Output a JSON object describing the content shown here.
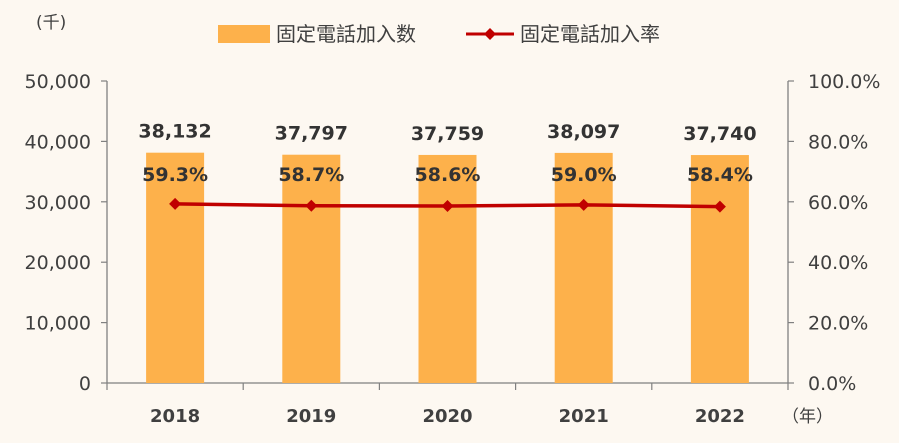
{
  "chart_data": {
    "type": "bar+line",
    "categories": [
      "2018",
      "2019",
      "2020",
      "2021",
      "2022"
    ],
    "series": [
      {
        "name": "固定電話加入数",
        "type": "bar",
        "axis": "left",
        "color": "#fdb14b",
        "values": [
          38132,
          37797,
          37759,
          38097,
          37740
        ],
        "value_labels": [
          "38,132",
          "37,797",
          "37,759",
          "38,097",
          "37,740"
        ]
      },
      {
        "name": "固定電話加入率",
        "type": "line",
        "axis": "right",
        "color": "#c00000",
        "values": [
          59.3,
          58.7,
          58.6,
          59.0,
          58.4
        ],
        "value_labels": [
          "59.3%",
          "58.7%",
          "58.6%",
          "59.0%",
          "58.4%"
        ]
      }
    ],
    "left_axis": {
      "unit_label": "(千)",
      "ylim": [
        0,
        50000
      ],
      "ticks": [
        0,
        10000,
        20000,
        30000,
        40000,
        50000
      ],
      "tick_labels": [
        "0",
        "10,000",
        "20,000",
        "30,000",
        "40,000",
        "50,000"
      ]
    },
    "right_axis": {
      "ylim": [
        0,
        100
      ],
      "ticks": [
        0,
        20,
        40,
        60,
        80,
        100
      ],
      "tick_labels": [
        "0.0%",
        "20.0%",
        "40.0%",
        "60.0%",
        "80.0%",
        "100.0%"
      ]
    },
    "x_axis": {
      "unit_label": "（年）"
    },
    "legend": {
      "position": "top-center"
    },
    "grid": false,
    "colors": {
      "axis": "#808080",
      "text": "#404040",
      "value_text": "#333333",
      "background": "#fdf8f1"
    }
  }
}
